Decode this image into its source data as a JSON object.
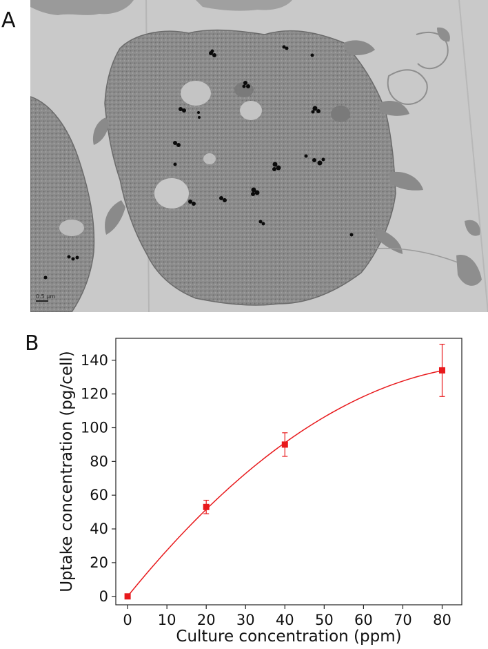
{
  "figure": {
    "panels": [
      {
        "label": "A",
        "scale_bar_label": "0.5 µm"
      },
      {
        "label": "B"
      }
    ]
  },
  "colors": {
    "series": "#e8191c",
    "background_gray": "#c6c6c6",
    "cell_gray": "#8e8e8e",
    "particle": "#0a0a0a"
  },
  "chart_data": {
    "type": "scatter",
    "title": "",
    "xlabel": "Culture concentration (ppm)",
    "ylabel": "Uptake concentration  (pg/cell)",
    "xlim": [
      -3,
      85
    ],
    "ylim": [
      -5,
      153
    ],
    "xticks": [
      0,
      10,
      20,
      30,
      40,
      50,
      60,
      70,
      80
    ],
    "yticks": [
      0,
      20,
      40,
      60,
      80,
      100,
      120,
      140
    ],
    "grid": false,
    "series": [
      {
        "x": [
          0,
          20,
          40,
          80
        ],
        "y": [
          0,
          53,
          90,
          134
        ],
        "yerr": [
          0,
          4,
          7,
          15.5
        ],
        "marker": "square",
        "fit_curve": true
      }
    ]
  }
}
